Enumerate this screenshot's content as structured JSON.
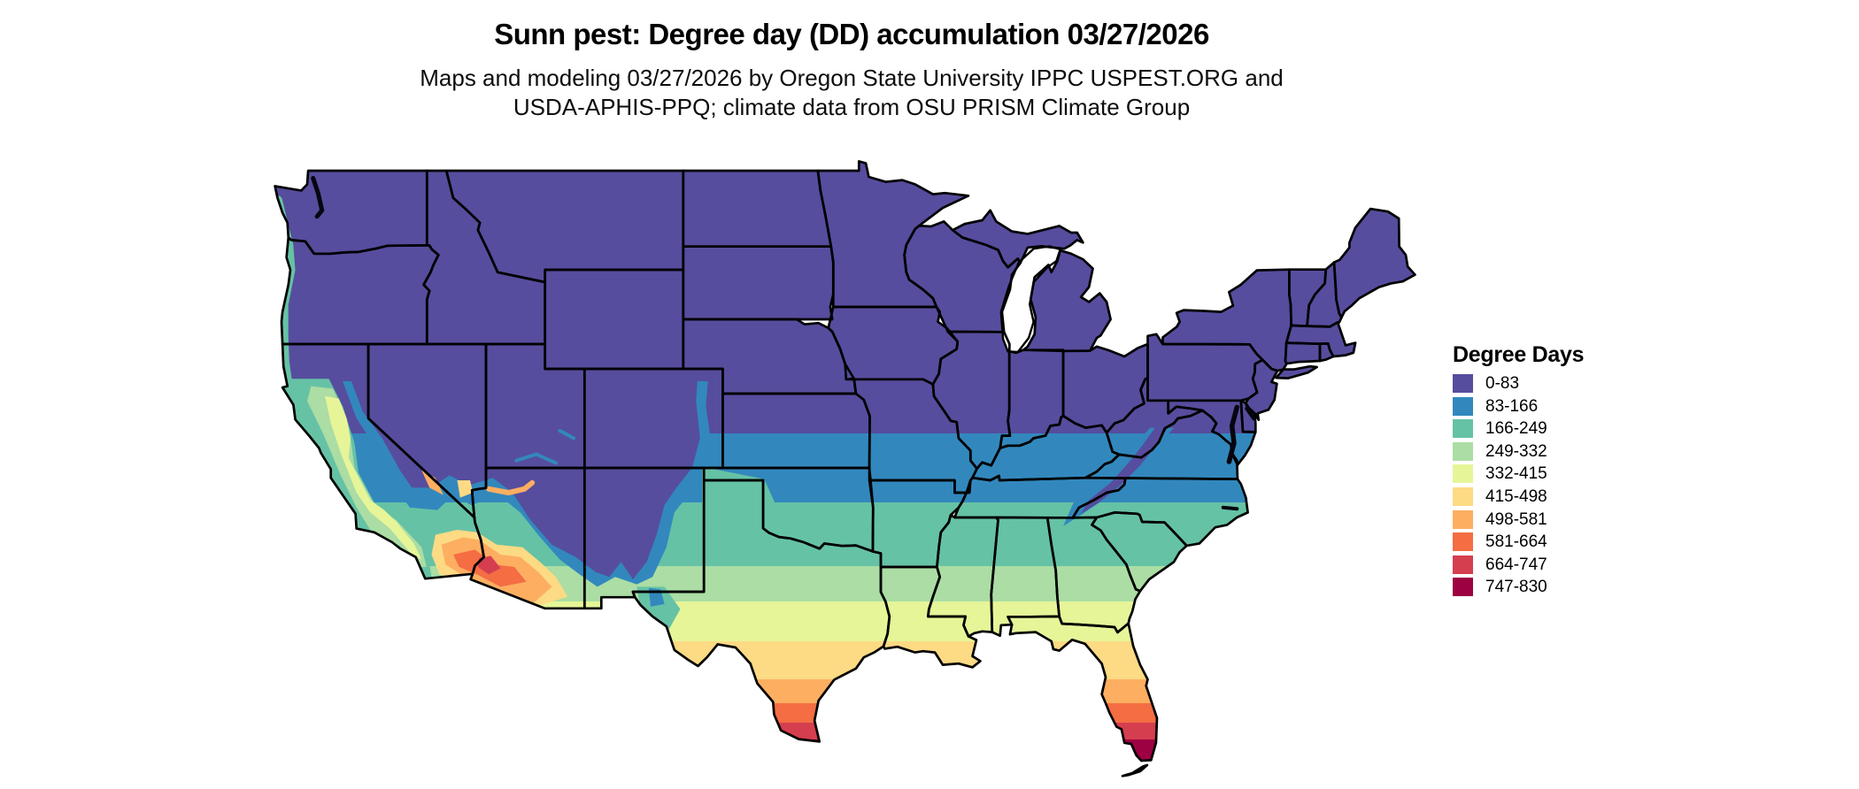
{
  "title": "Sunn pest: Degree day (DD) accumulation 03/27/2026",
  "subtitle_line1": "Maps and modeling 03/27/2026 by Oregon State University IPPC USPEST.ORG and",
  "subtitle_line2": "USDA-APHIS-PPQ; climate data from OSU PRISM Climate Group",
  "legend": {
    "title": "Degree Days",
    "items": [
      {
        "label": "0-83",
        "color": "#564D9E"
      },
      {
        "label": "83-166",
        "color": "#3288BD"
      },
      {
        "label": "166-249",
        "color": "#66C2A5"
      },
      {
        "label": "249-332",
        "color": "#ABDDA4"
      },
      {
        "label": "332-415",
        "color": "#E6F598"
      },
      {
        "label": "415-498",
        "color": "#FDDA84"
      },
      {
        "label": "498-581",
        "color": "#FDAE61"
      },
      {
        "label": "581-664",
        "color": "#F46D43"
      },
      {
        "label": "664-747",
        "color": "#D53E4F"
      },
      {
        "label": "747-830",
        "color": "#9E0142"
      }
    ]
  },
  "chart_data": {
    "type": "heatmap",
    "title": "Sunn pest: Degree day (DD) accumulation 03/27/2026",
    "region": "Contiguous United States (state boundaries shown)",
    "variable": "Degree day (DD) accumulation",
    "date": "03/27/2026",
    "legend_title": "Degree Days",
    "bins": [
      "0-83",
      "83-166",
      "166-249",
      "249-332",
      "332-415",
      "415-498",
      "498-581",
      "581-664",
      "664-747",
      "747-830"
    ],
    "bin_colors": [
      "#564D9E",
      "#3288BD",
      "#66C2A5",
      "#ABDDA4",
      "#E6F598",
      "#FDDA84",
      "#FDAE61",
      "#F46D43",
      "#D53E4F",
      "#9E0142"
    ],
    "pattern": "Lowest accumulation (0-83) across the northern US, Rockies and Appalachians; values increase southward in latitudinal bands; highest accumulations (664-830) in south Texas, southwest Arizona / southeast California deserts, and south Florida / Keys"
  }
}
